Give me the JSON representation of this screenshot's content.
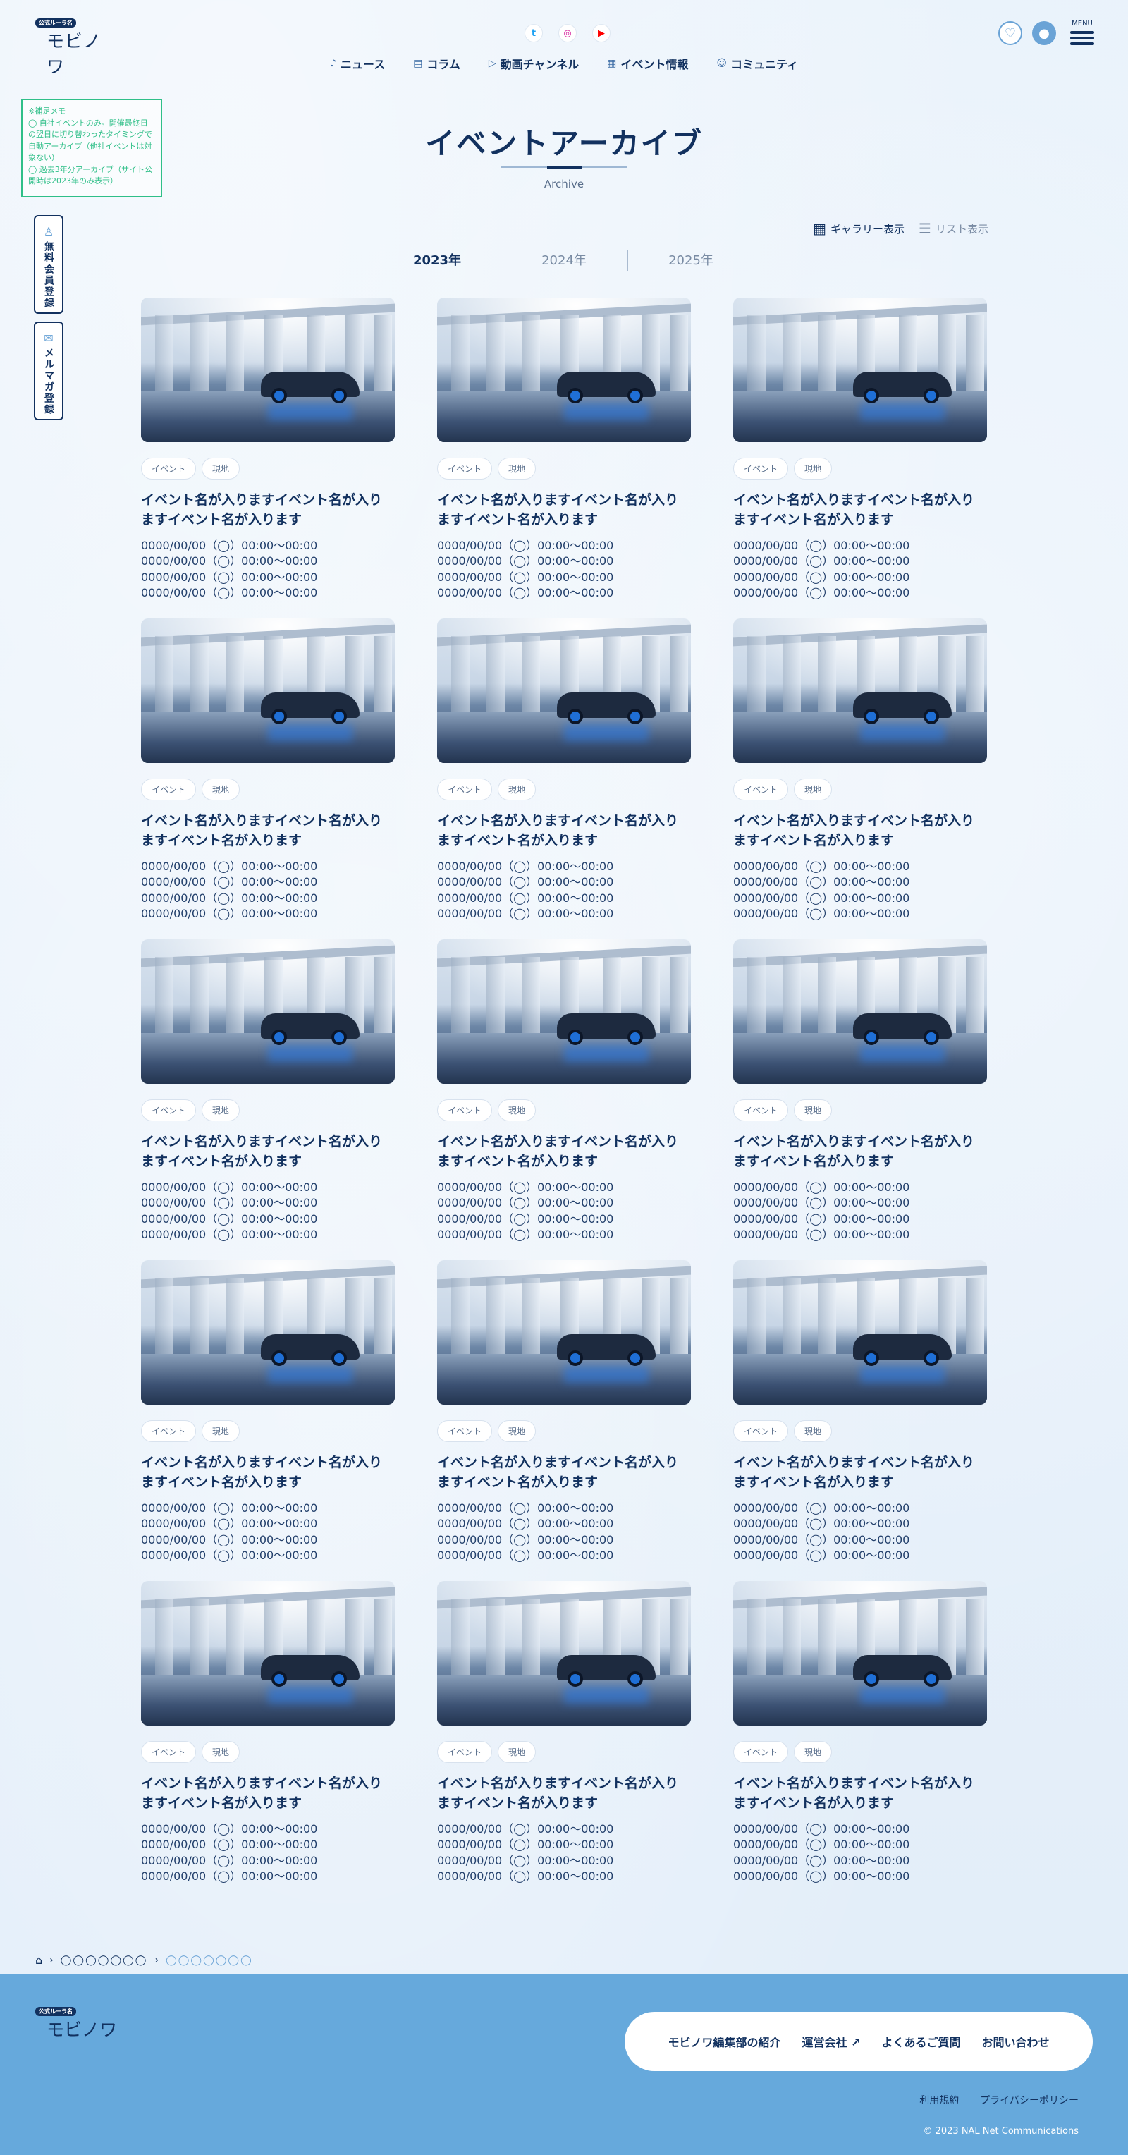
{
  "header": {
    "logo_badge": "公式ルーラ名",
    "logo_text": "モビノワ",
    "social": [
      {
        "name": "twitter",
        "glyph": "t"
      },
      {
        "name": "instagram",
        "glyph": "◎"
      },
      {
        "name": "youtube",
        "glyph": "▶"
      }
    ],
    "nav": [
      {
        "label": "ニュース",
        "icon": "bell-icon",
        "glyph": "♪"
      },
      {
        "label": "コラム",
        "icon": "document-icon",
        "glyph": "▤"
      },
      {
        "label": "動画チャンネル",
        "icon": "play-icon",
        "glyph": "▷"
      },
      {
        "label": "イベント情報",
        "icon": "calendar-icon",
        "glyph": "▦"
      },
      {
        "label": "コミュニティ",
        "icon": "people-icon",
        "glyph": "☺"
      }
    ],
    "menu_label": "MENU"
  },
  "memo": {
    "lines": [
      "※補足メモ",
      "◯ 自社イベントのみ。開催最終日の翌日に切り替わったタイミングで自動アーカイブ（他社イベントは対象ない）",
      "◯ 過去3年分アーカイブ（サイト公開時は2023年のみ表示）"
    ]
  },
  "side_buttons": [
    {
      "label": "無料会員登録",
      "icon": "user-icon",
      "glyph": "♙"
    },
    {
      "label": "メルマガ登録",
      "icon": "mail-icon",
      "glyph": "✉"
    }
  ],
  "page": {
    "title": "イベントアーカイブ",
    "subtitle": "Archive"
  },
  "views": {
    "gallery": "ギャラリー表示",
    "list": "リスト表示"
  },
  "years": [
    "2023年",
    "2024年",
    "2025年"
  ],
  "active_year": "2023年",
  "cards": [
    {
      "tags": [
        "イベント",
        "現地"
      ],
      "title": "イベント名が入りますイベント名が入りますイベント名が入ります",
      "dates": [
        "0000/00/00（◯）00:00〜00:00",
        "0000/00/00（◯）00:00〜00:00",
        "0000/00/00（◯）00:00〜00:00",
        "0000/00/00（◯）00:00〜00:00"
      ]
    },
    {
      "tags": [
        "イベント",
        "現地"
      ],
      "title": "イベント名が入りますイベント名が入りますイベント名が入ります",
      "dates": [
        "0000/00/00（◯）00:00〜00:00",
        "0000/00/00（◯）00:00〜00:00",
        "0000/00/00（◯）00:00〜00:00",
        "0000/00/00（◯）00:00〜00:00"
      ]
    },
    {
      "tags": [
        "イベント",
        "現地"
      ],
      "title": "イベント名が入りますイベント名が入りますイベント名が入ります",
      "dates": [
        "0000/00/00（◯）00:00〜00:00",
        "0000/00/00（◯）00:00〜00:00",
        "0000/00/00（◯）00:00〜00:00",
        "0000/00/00（◯）00:00〜00:00"
      ]
    },
    {
      "tags": [
        "イベント",
        "現地"
      ],
      "title": "イベント名が入りますイベント名が入りますイベント名が入ります",
      "dates": [
        "0000/00/00（◯）00:00〜00:00",
        "0000/00/00（◯）00:00〜00:00",
        "0000/00/00（◯）00:00〜00:00",
        "0000/00/00（◯）00:00〜00:00"
      ]
    },
    {
      "tags": [
        "イベント",
        "現地"
      ],
      "title": "イベント名が入りますイベント名が入りますイベント名が入ります",
      "dates": [
        "0000/00/00（◯）00:00〜00:00",
        "0000/00/00（◯）00:00〜00:00",
        "0000/00/00（◯）00:00〜00:00",
        "0000/00/00（◯）00:00〜00:00"
      ]
    },
    {
      "tags": [
        "イベント",
        "現地"
      ],
      "title": "イベント名が入りますイベント名が入りますイベント名が入ります",
      "dates": [
        "0000/00/00（◯）00:00〜00:00",
        "0000/00/00（◯）00:00〜00:00",
        "0000/00/00（◯）00:00〜00:00",
        "0000/00/00（◯）00:00〜00:00"
      ]
    },
    {
      "tags": [
        "イベント",
        "現地"
      ],
      "title": "イベント名が入りますイベント名が入りますイベント名が入ります",
      "dates": [
        "0000/00/00（◯）00:00〜00:00",
        "0000/00/00（◯）00:00〜00:00",
        "0000/00/00（◯）00:00〜00:00",
        "0000/00/00（◯）00:00〜00:00"
      ]
    },
    {
      "tags": [
        "イベント",
        "現地"
      ],
      "title": "イベント名が入りますイベント名が入りますイベント名が入ります",
      "dates": [
        "0000/00/00（◯）00:00〜00:00",
        "0000/00/00（◯）00:00〜00:00",
        "0000/00/00（◯）00:00〜00:00",
        "0000/00/00（◯）00:00〜00:00"
      ]
    },
    {
      "tags": [
        "イベント",
        "現地"
      ],
      "title": "イベント名が入りますイベント名が入りますイベント名が入ります",
      "dates": [
        "0000/00/00（◯）00:00〜00:00",
        "0000/00/00（◯）00:00〜00:00",
        "0000/00/00（◯）00:00〜00:00",
        "0000/00/00（◯）00:00〜00:00"
      ]
    },
    {
      "tags": [
        "イベント",
        "現地"
      ],
      "title": "イベント名が入りますイベント名が入りますイベント名が入ります",
      "dates": [
        "0000/00/00（◯）00:00〜00:00",
        "0000/00/00（◯）00:00〜00:00",
        "0000/00/00（◯）00:00〜00:00",
        "0000/00/00（◯）00:00〜00:00"
      ]
    },
    {
      "tags": [
        "イベント",
        "現地"
      ],
      "title": "イベント名が入りますイベント名が入りますイベント名が入ります",
      "dates": [
        "0000/00/00（◯）00:00〜00:00",
        "0000/00/00（◯）00:00〜00:00",
        "0000/00/00（◯）00:00〜00:00",
        "0000/00/00（◯）00:00〜00:00"
      ]
    },
    {
      "tags": [
        "イベント",
        "現地"
      ],
      "title": "イベント名が入りますイベント名が入りますイベント名が入ります",
      "dates": [
        "0000/00/00（◯）00:00〜00:00",
        "0000/00/00（◯）00:00〜00:00",
        "0000/00/00（◯）00:00〜00:00",
        "0000/00/00（◯）00:00〜00:00"
      ]
    },
    {
      "tags": [
        "イベント",
        "現地"
      ],
      "title": "イベント名が入りますイベント名が入りますイベント名が入ります",
      "dates": [
        "0000/00/00（◯）00:00〜00:00",
        "0000/00/00（◯）00:00〜00:00",
        "0000/00/00（◯）00:00〜00:00",
        "0000/00/00（◯）00:00〜00:00"
      ]
    },
    {
      "tags": [
        "イベント",
        "現地"
      ],
      "title": "イベント名が入りますイベント名が入りますイベント名が入ります",
      "dates": [
        "0000/00/00（◯）00:00〜00:00",
        "0000/00/00（◯）00:00〜00:00",
        "0000/00/00（◯）00:00〜00:00",
        "0000/00/00（◯）00:00〜00:00"
      ]
    },
    {
      "tags": [
        "イベント",
        "現地"
      ],
      "title": "イベント名が入りますイベント名が入りますイベント名が入ります",
      "dates": [
        "0000/00/00（◯）00:00〜00:00",
        "0000/00/00（◯）00:00〜00:00",
        "0000/00/00（◯）00:00〜00:00",
        "0000/00/00（◯）00:00〜00:00"
      ]
    }
  ],
  "breadcrumb": {
    "items": [
      "◯◯◯◯◯◯◯",
      "◯◯◯◯◯◯◯"
    ]
  },
  "footer": {
    "logo_badge": "公式ルーラ名",
    "logo_text": "モビノワ",
    "links": [
      "モビノワ編集部の紹介",
      "運営会社",
      "よくあるご質問",
      "お問い合わせ"
    ],
    "sub_links": [
      "利用規約",
      "プライバシーポリシー"
    ],
    "copyright": "© 2023 NAL Net Communications"
  },
  "colors": {
    "primary": "#12315f",
    "accent": "#66a9dc",
    "memo": "#2fbf88",
    "background": "#e6f0fa"
  }
}
